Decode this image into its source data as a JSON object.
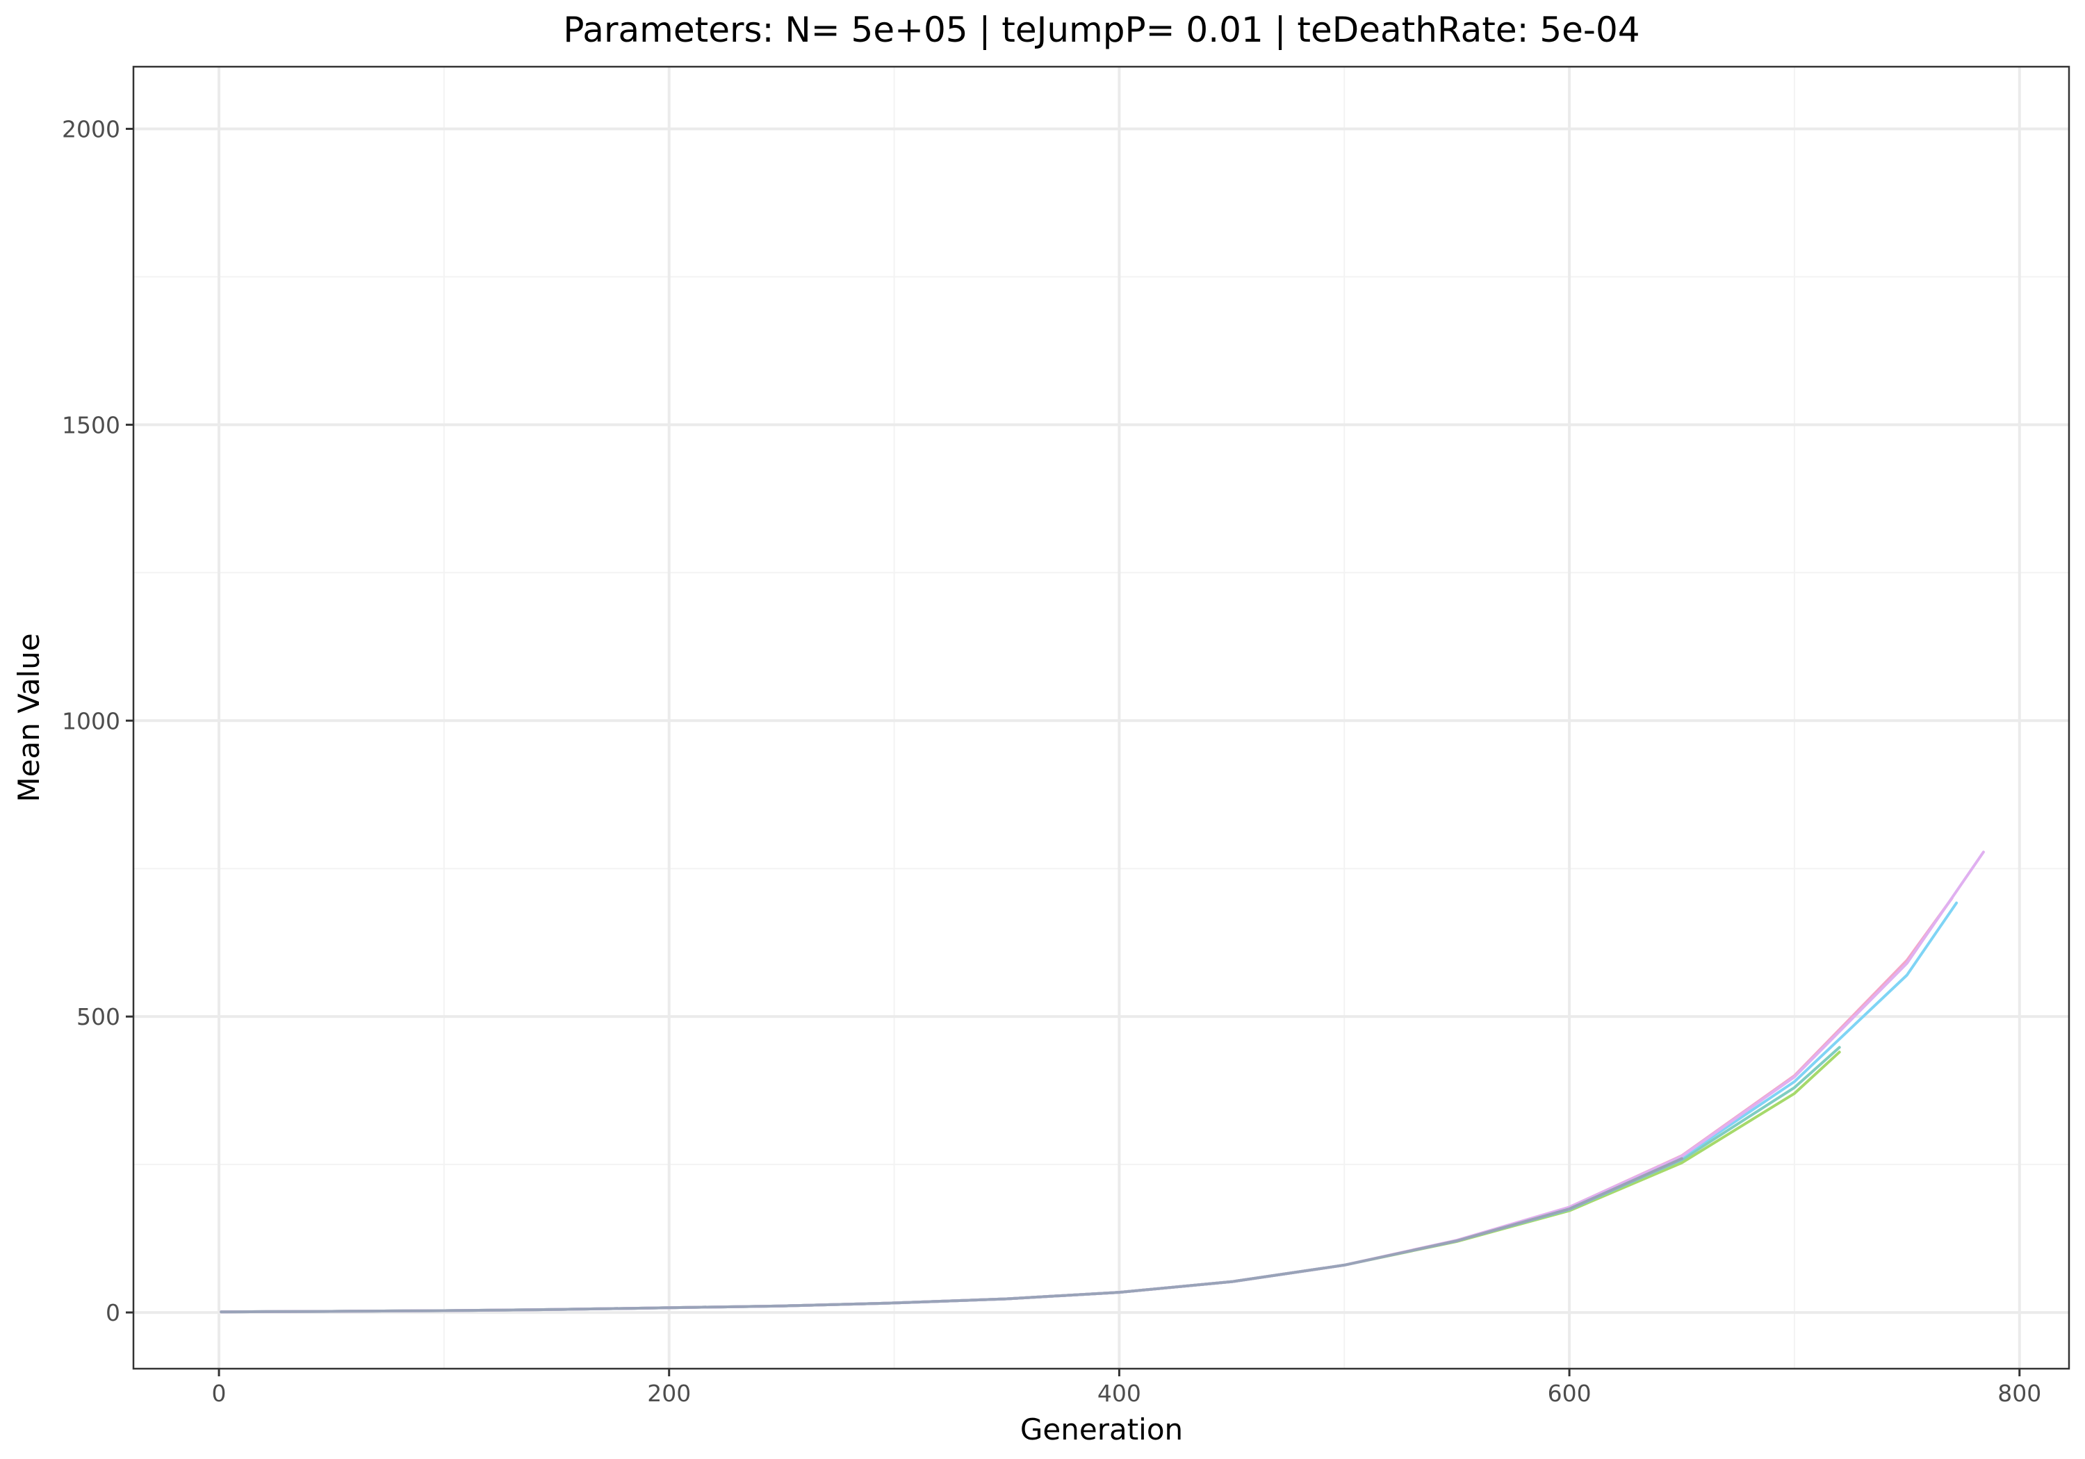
{
  "chart_data": {
    "type": "line",
    "title": "Parameters:   N= 5e+05  |  teJumpP= 0.01  |  teDeathRate: 5e-04",
    "xlabel": "Generation",
    "ylabel": "Mean Value",
    "xlim": [
      -38,
      822
    ],
    "ylim": [
      -95,
      2105
    ],
    "x_ticks": [
      0,
      200,
      400,
      600,
      800
    ],
    "y_ticks": [
      0,
      500,
      1000,
      1500,
      2000
    ],
    "x_minor_ticks": [
      100,
      300,
      500,
      700
    ],
    "y_minor_ticks": [
      250,
      750,
      1250,
      1750
    ],
    "grid": true,
    "legend": "none",
    "series": [
      {
        "color": "#a6d96a",
        "x": [
          1,
          50,
          100,
          150,
          200,
          250,
          300,
          350,
          400,
          450,
          500,
          550,
          600,
          650,
          700,
          720
        ],
        "y": [
          1,
          1.8,
          3,
          5,
          8,
          11,
          16,
          23,
          34,
          52,
          80,
          120,
          172,
          253,
          370,
          440
        ]
      },
      {
        "color": "#80cdc1",
        "x": [
          1,
          50,
          100,
          150,
          200,
          250,
          300,
          350,
          400,
          450,
          500,
          550,
          600,
          650,
          700,
          720
        ],
        "y": [
          1,
          1.8,
          3,
          5,
          8,
          11,
          16,
          23,
          34,
          52,
          80,
          121,
          174,
          258,
          380,
          448
        ]
      },
      {
        "color": "#7fd4f5",
        "x": [
          1,
          50,
          100,
          150,
          200,
          250,
          300,
          350,
          400,
          450,
          500,
          550,
          600,
          650,
          700,
          750,
          772
        ],
        "y": [
          1,
          1.8,
          3,
          5,
          8,
          11,
          16,
          23,
          34,
          52,
          80,
          121,
          176,
          262,
          390,
          570,
          692
        ]
      },
      {
        "color": "#f4a6c8",
        "x": [
          1,
          50,
          100,
          150,
          200,
          250,
          300,
          350,
          400,
          450,
          500,
          550,
          600,
          650,
          700,
          750,
          770
        ],
        "y": [
          1,
          1.8,
          3,
          5,
          8,
          11,
          16,
          23,
          34,
          52,
          80,
          122,
          178,
          265,
          400,
          595,
          700
        ]
      },
      {
        "color": "#e0b0f0",
        "x": [
          1,
          50,
          100,
          150,
          200,
          250,
          300,
          350,
          400,
          450,
          500,
          550,
          600,
          650,
          700,
          750,
          784
        ],
        "y": [
          1,
          1.8,
          3,
          5,
          8,
          11,
          16,
          23,
          34,
          52,
          80,
          122,
          178,
          264,
          398,
          590,
          778
        ]
      },
      {
        "color": "#99a3b8",
        "x": [
          1,
          50,
          100,
          150,
          200,
          250,
          300,
          350,
          400,
          450,
          500,
          550,
          600,
          650
        ],
        "y": [
          1,
          1.8,
          3,
          5,
          8,
          11,
          16,
          23,
          34,
          52,
          80,
          121,
          175,
          260
        ]
      }
    ]
  }
}
